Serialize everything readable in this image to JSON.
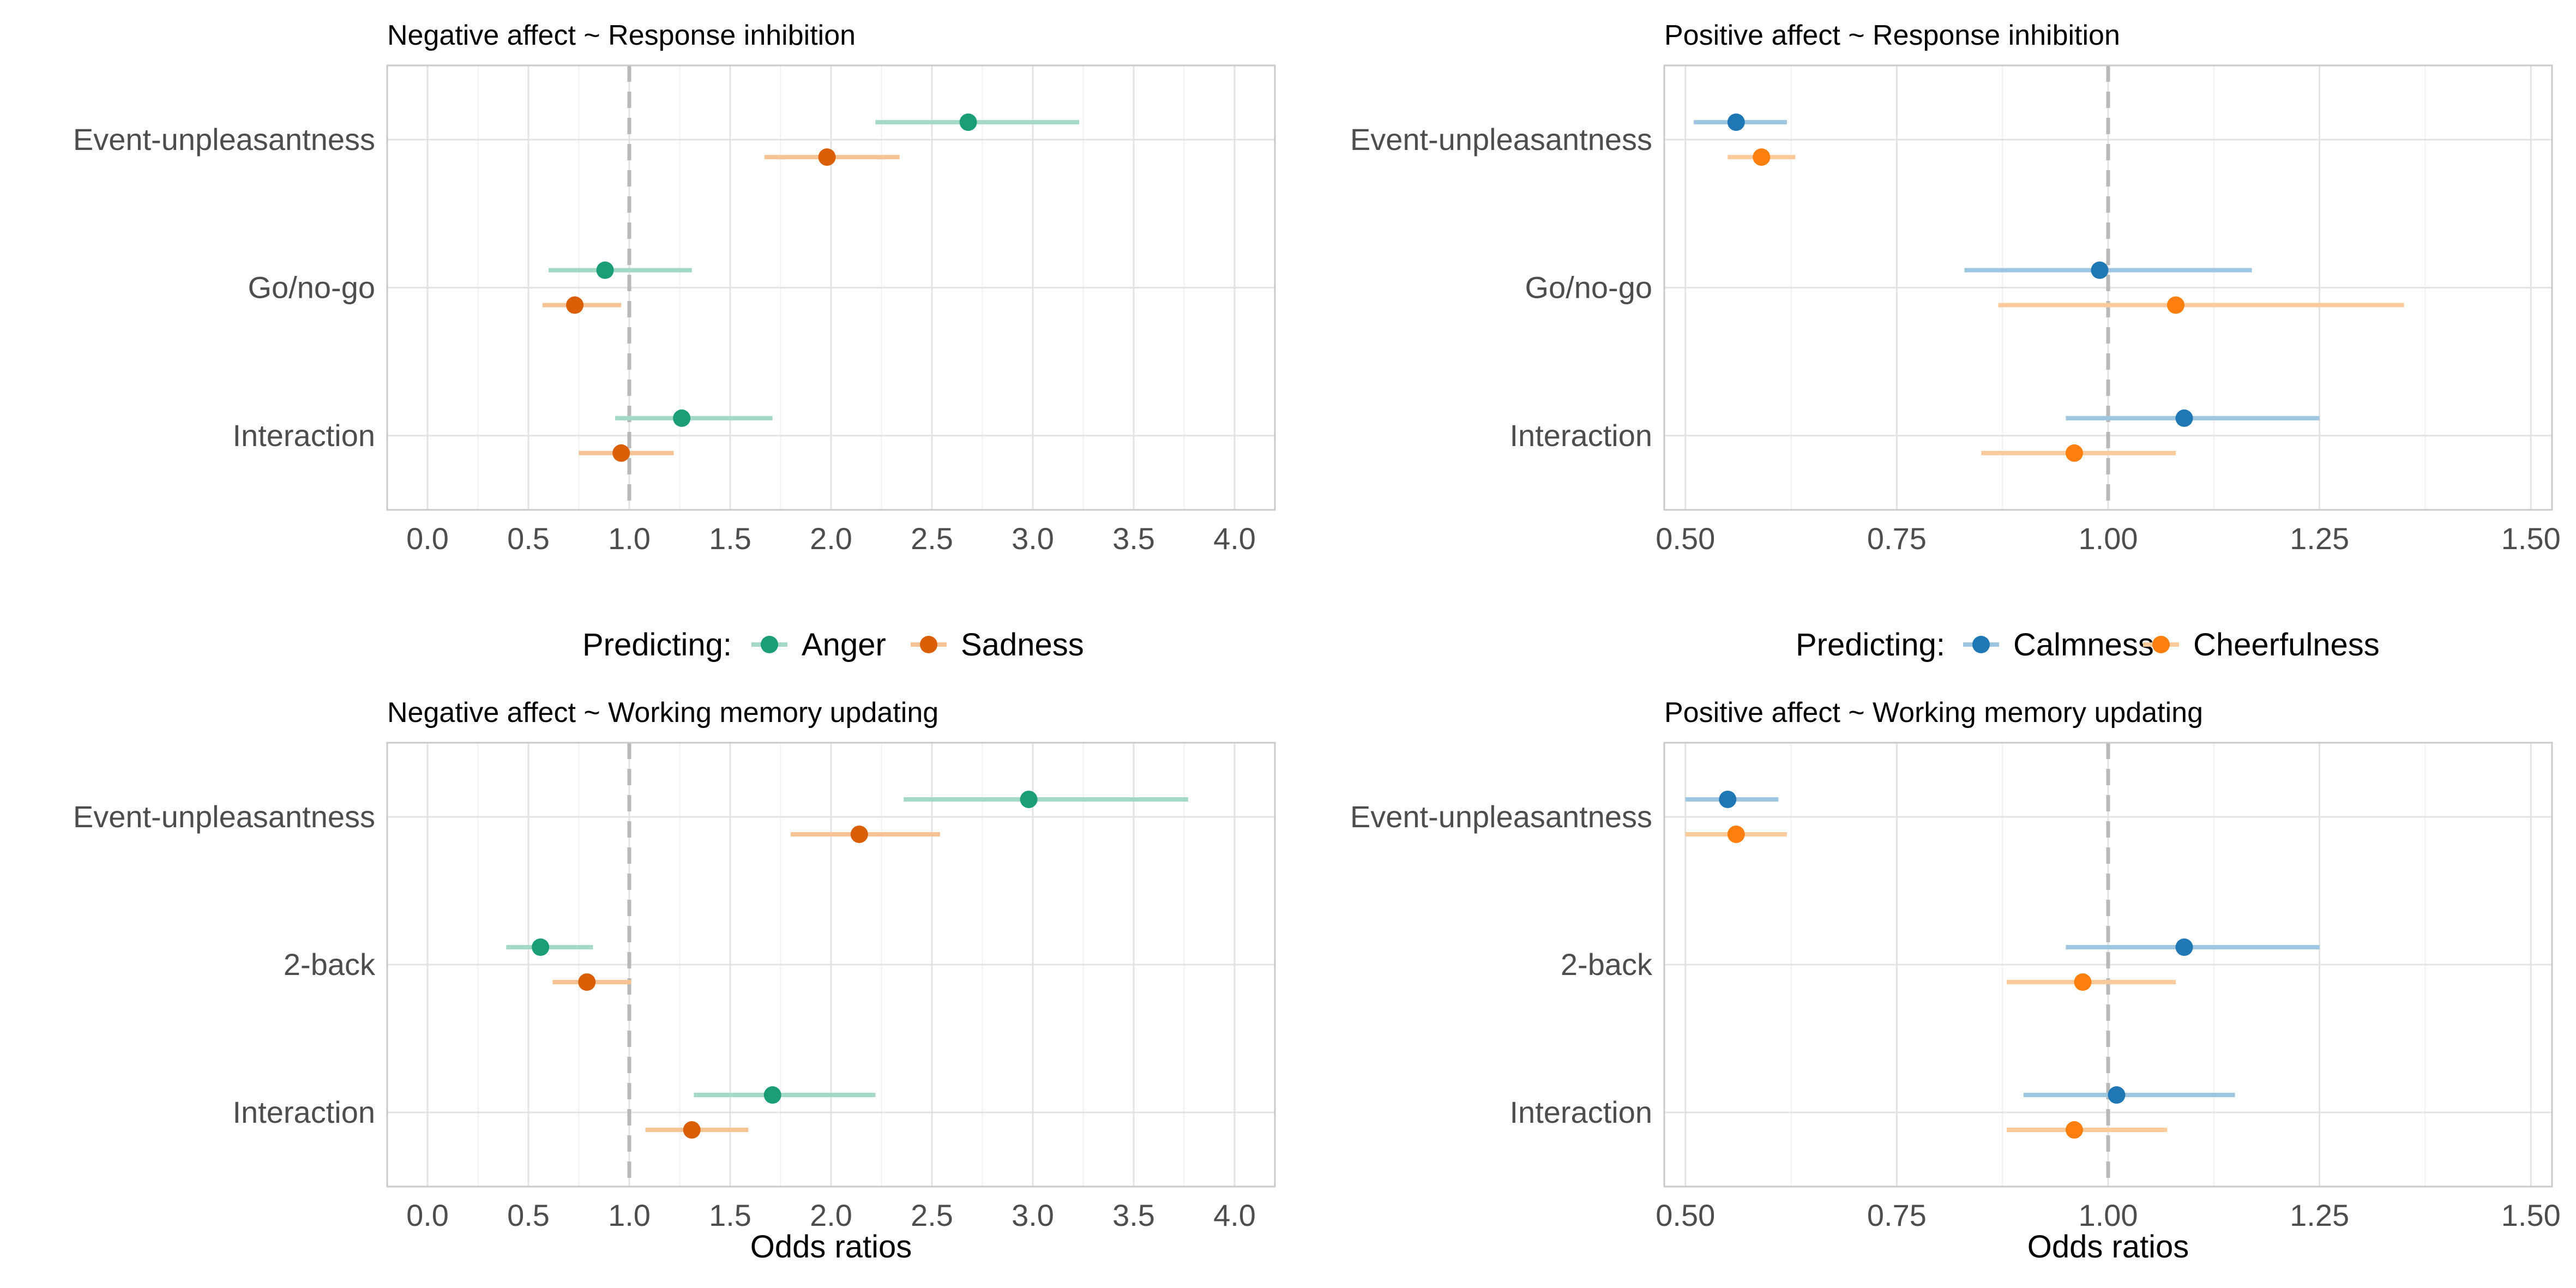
{
  "chart_data": [
    {
      "type": "forest",
      "title": "Negative affect ~ Response inhibition",
      "xlabel": "",
      "categories": [
        "Event-unpleasantness",
        "Go/no-go",
        "Interaction"
      ],
      "x_ticks": [
        "0.0",
        "0.5",
        "1.0",
        "1.5",
        "2.0",
        "2.5",
        "3.0",
        "3.5",
        "4.0"
      ],
      "xlim": [
        -0.2,
        4.2
      ],
      "reference_line": 1.0,
      "series": [
        {
          "name": "Anger",
          "color": "#1b9e77",
          "ci_color": "#a3d9c6",
          "estimates": [
            2.68,
            0.88,
            1.26
          ],
          "lower": [
            2.22,
            0.6,
            0.93
          ],
          "upper": [
            3.23,
            1.31,
            1.71
          ]
        },
        {
          "name": "Sadness",
          "color": "#d95f02",
          "ci_color": "#f7c294",
          "estimates": [
            1.98,
            0.73,
            0.96
          ],
          "lower": [
            1.67,
            0.57,
            0.75
          ],
          "upper": [
            2.34,
            0.96,
            1.22
          ]
        }
      ]
    },
    {
      "type": "forest",
      "title": "Positive affect ~ Response inhibition",
      "xlabel": "",
      "categories": [
        "Event-unpleasantness",
        "Go/no-go",
        "Interaction"
      ],
      "x_ticks": [
        "0.50",
        "0.75",
        "1.00",
        "1.25",
        "1.50"
      ],
      "xlim": [
        0.475,
        1.525
      ],
      "reference_line": 1.0,
      "series": [
        {
          "name": "Calmness",
          "color": "#1f78b4",
          "ci_color": "#9ec6e0",
          "estimates": [
            0.56,
            0.99,
            1.09
          ],
          "lower": [
            0.51,
            0.83,
            0.95
          ],
          "upper": [
            0.62,
            1.17,
            1.25
          ]
        },
        {
          "name": "Cheerfulness",
          "color": "#ff7f0e",
          "ci_color": "#fdcb9b",
          "estimates": [
            0.59,
            1.08,
            0.96
          ],
          "lower": [
            0.55,
            0.87,
            0.85
          ],
          "upper": [
            0.63,
            1.35,
            1.08
          ]
        }
      ]
    },
    {
      "type": "forest",
      "title": "Negative affect ~ Working memory updating",
      "xlabel": "Odds ratios",
      "categories": [
        "Event-unpleasantness",
        "2-back",
        "Interaction"
      ],
      "x_ticks": [
        "0.0",
        "0.5",
        "1.0",
        "1.5",
        "2.0",
        "2.5",
        "3.0",
        "3.5",
        "4.0"
      ],
      "xlim": [
        -0.2,
        4.2
      ],
      "reference_line": 1.0,
      "series": [
        {
          "name": "Anger",
          "color": "#1b9e77",
          "ci_color": "#a3d9c6",
          "estimates": [
            2.98,
            0.56,
            1.71
          ],
          "lower": [
            2.36,
            0.39,
            1.32
          ],
          "upper": [
            3.77,
            0.82,
            2.22
          ]
        },
        {
          "name": "Sadness",
          "color": "#d95f02",
          "ci_color": "#f7c294",
          "estimates": [
            2.14,
            0.79,
            1.31
          ],
          "lower": [
            1.8,
            0.62,
            1.08
          ],
          "upper": [
            2.54,
            1.01,
            1.59
          ]
        }
      ]
    },
    {
      "type": "forest",
      "title": "Positive affect ~ Working memory updating",
      "xlabel": "Odds ratios",
      "categories": [
        "Event-unpleasantness",
        "2-back",
        "Interaction"
      ],
      "x_ticks": [
        "0.50",
        "0.75",
        "1.00",
        "1.25",
        "1.50"
      ],
      "xlim": [
        0.475,
        1.525
      ],
      "reference_line": 1.0,
      "series": [
        {
          "name": "Calmness",
          "color": "#1f78b4",
          "ci_color": "#9ec6e0",
          "estimates": [
            0.55,
            1.09,
            1.01
          ],
          "lower": [
            0.5,
            0.95,
            0.9
          ],
          "upper": [
            0.61,
            1.25,
            1.15
          ]
        },
        {
          "name": "Cheerfulness",
          "color": "#ff7f0e",
          "ci_color": "#fdcb9b",
          "estimates": [
            0.56,
            0.97,
            0.96
          ],
          "lower": [
            0.5,
            0.88,
            0.88
          ],
          "upper": [
            0.62,
            1.08,
            1.07
          ]
        }
      ]
    }
  ],
  "legends": [
    {
      "title": "Predicting:",
      "items": [
        "Anger",
        "Sadness"
      ]
    },
    {
      "title": "Predicting:",
      "items": [
        "Calmness",
        "Cheerfulness"
      ]
    }
  ],
  "style": {
    "grid_major": "#e3e3e3",
    "grid_minor": "#f0f0f0",
    "panel_border": "#c9c9c9",
    "reference_line": "#b8b8b8"
  }
}
